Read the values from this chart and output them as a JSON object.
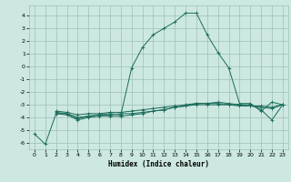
{
  "xlabel": "Humidex (Indice chaleur)",
  "bg_color": "#cce8e0",
  "grid_color": "#9dbfb8",
  "line_color": "#1a6b5a",
  "xlim": [
    -0.5,
    23.5
  ],
  "ylim": [
    -6.5,
    4.8
  ],
  "xticks": [
    0,
    1,
    2,
    3,
    4,
    5,
    6,
    7,
    8,
    9,
    10,
    11,
    12,
    13,
    14,
    15,
    16,
    17,
    18,
    19,
    20,
    21,
    22,
    23
  ],
  "yticks": [
    -6,
    -5,
    -4,
    -3,
    -2,
    -1,
    0,
    1,
    2,
    3,
    4
  ],
  "series1": [
    [
      0,
      -5.3
    ],
    [
      1,
      -6.1
    ],
    [
      2,
      -3.7
    ],
    [
      3,
      -3.7
    ],
    [
      4,
      -4.1
    ],
    [
      5,
      -3.9
    ],
    [
      6,
      -3.8
    ],
    [
      7,
      -3.7
    ],
    [
      8,
      -3.8
    ],
    [
      9,
      -0.1
    ],
    [
      10,
      1.5
    ],
    [
      11,
      2.5
    ],
    [
      12,
      3.0
    ],
    [
      13,
      3.5
    ],
    [
      14,
      4.2
    ],
    [
      15,
      4.2
    ],
    [
      16,
      2.5
    ],
    [
      17,
      1.1
    ],
    [
      18,
      -0.1
    ],
    [
      19,
      -2.9
    ],
    [
      20,
      -2.9
    ],
    [
      21,
      -3.5
    ],
    [
      22,
      -2.8
    ],
    [
      23,
      -3.0
    ]
  ],
  "series2": [
    [
      2,
      -3.7
    ],
    [
      3,
      -3.8
    ],
    [
      4,
      -4.2
    ],
    [
      5,
      -4.0
    ],
    [
      6,
      -3.9
    ],
    [
      7,
      -3.9
    ],
    [
      8,
      -3.9
    ],
    [
      9,
      -3.8
    ],
    [
      10,
      -3.7
    ],
    [
      11,
      -3.5
    ],
    [
      12,
      -3.4
    ],
    [
      13,
      -3.2
    ],
    [
      14,
      -3.1
    ],
    [
      15,
      -2.9
    ],
    [
      16,
      -2.9
    ],
    [
      17,
      -2.8
    ],
    [
      18,
      -2.9
    ],
    [
      19,
      -3.0
    ],
    [
      20,
      -3.0
    ],
    [
      21,
      -3.4
    ],
    [
      22,
      -4.2
    ],
    [
      23,
      -3.0
    ]
  ],
  "series3": [
    [
      2,
      -3.6
    ],
    [
      3,
      -3.7
    ],
    [
      4,
      -4.0
    ],
    [
      5,
      -3.9
    ],
    [
      6,
      -3.8
    ],
    [
      7,
      -3.8
    ],
    [
      8,
      -3.7
    ],
    [
      9,
      -3.7
    ],
    [
      10,
      -3.6
    ],
    [
      11,
      -3.5
    ],
    [
      12,
      -3.4
    ],
    [
      13,
      -3.2
    ],
    [
      14,
      -3.1
    ],
    [
      15,
      -3.0
    ],
    [
      16,
      -3.0
    ],
    [
      17,
      -3.0
    ],
    [
      18,
      -3.0
    ],
    [
      19,
      -3.1
    ],
    [
      20,
      -3.1
    ],
    [
      21,
      -3.2
    ],
    [
      22,
      -3.3
    ],
    [
      23,
      -3.0
    ]
  ],
  "series4": [
    [
      2,
      -3.5
    ],
    [
      3,
      -3.6
    ],
    [
      4,
      -3.8
    ],
    [
      5,
      -3.7
    ],
    [
      6,
      -3.7
    ],
    [
      7,
      -3.6
    ],
    [
      8,
      -3.6
    ],
    [
      9,
      -3.5
    ],
    [
      10,
      -3.4
    ],
    [
      11,
      -3.3
    ],
    [
      12,
      -3.2
    ],
    [
      13,
      -3.1
    ],
    [
      14,
      -3.0
    ],
    [
      15,
      -2.9
    ],
    [
      16,
      -2.9
    ],
    [
      17,
      -2.9
    ],
    [
      18,
      -3.0
    ],
    [
      19,
      -3.0
    ],
    [
      20,
      -3.1
    ],
    [
      21,
      -3.1
    ],
    [
      22,
      -3.2
    ],
    [
      23,
      -3.0
    ]
  ]
}
